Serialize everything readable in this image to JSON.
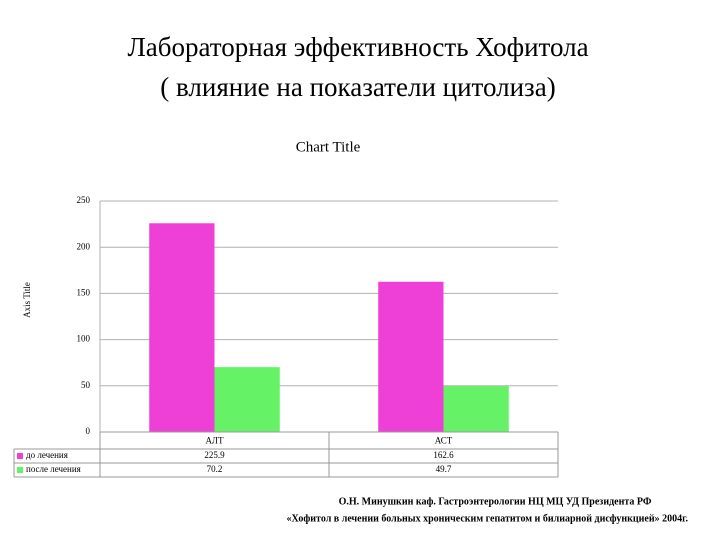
{
  "slide_title": [
    "Лабораторная эффективность Хофитола",
    "( влияние на показатели цитолиза)"
  ],
  "chart_data": {
    "type": "bar",
    "title": "Chart Title",
    "y_axis_label": "Axis Title",
    "categories": [
      "АЛТ",
      "АСТ"
    ],
    "series": [
      {
        "name": "до лечения",
        "color": "#ee3fd6",
        "values": [
          225.9,
          162.6
        ]
      },
      {
        "name": "после лечения",
        "color": "#66f266",
        "values": [
          70.2,
          49.7
        ]
      }
    ],
    "ylim": [
      0,
      250
    ],
    "yticks": [
      0,
      50,
      100,
      150,
      200,
      250
    ],
    "grid": true,
    "data_table": true
  },
  "footer": [
    "О.Н. Минушкин каф. Гастроэнтерологии НЦ МЦ УД Президента РФ",
    "«Хофитол в лечении больных хроническим гепатитом и билиарной дисфункцией» 2004г."
  ]
}
